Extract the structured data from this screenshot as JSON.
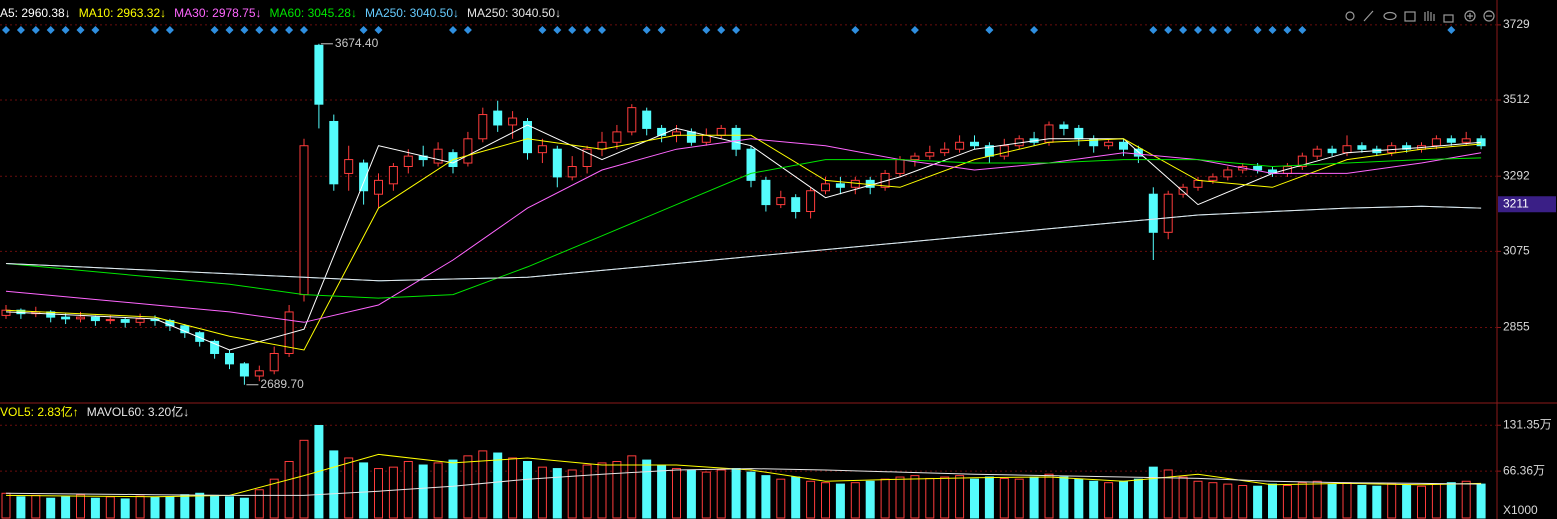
{
  "chart_data": [
    {
      "type": "candlestick",
      "open": [
        2890,
        2905,
        2895,
        2900,
        2885,
        2880,
        2885,
        2875,
        2878,
        2870,
        2880,
        2875,
        2860,
        2840,
        2815,
        2780,
        2750,
        2715,
        2730,
        2780,
        2950,
        3670,
        3450,
        3300,
        3330,
        3240,
        3270,
        3320,
        3350,
        3330,
        3360,
        3330,
        3400,
        3480,
        3440,
        3450,
        3360,
        3370,
        3290,
        3320,
        3370,
        3390,
        3420,
        3480,
        3430,
        3410,
        3420,
        3390,
        3410,
        3430,
        3370,
        3280,
        3210,
        3230,
        3190,
        3250,
        3270,
        3260,
        3280,
        3260,
        3300,
        3340,
        3350,
        3360,
        3370,
        3390,
        3380,
        3350,
        3380,
        3400,
        3390,
        3440,
        3430,
        3400,
        3380,
        3390,
        3370,
        3240,
        3130,
        3240,
        3260,
        3280,
        3290,
        3310,
        3320,
        3310,
        3300,
        3320,
        3350,
        3370,
        3360,
        3380,
        3370,
        3360,
        3380,
        3370,
        3380,
        3400,
        3390,
        3400
      ],
      "high": [
        2920,
        2910,
        2915,
        2905,
        2895,
        2900,
        2890,
        2890,
        2885,
        2895,
        2890,
        2880,
        2865,
        2845,
        2820,
        2790,
        2755,
        2745,
        2800,
        2920,
        3400,
        3674.4,
        3470,
        3380,
        3340,
        3300,
        3330,
        3370,
        3380,
        3390,
        3370,
        3420,
        3490,
        3510,
        3480,
        3460,
        3400,
        3380,
        3350,
        3380,
        3420,
        3440,
        3500,
        3490,
        3440,
        3440,
        3430,
        3430,
        3440,
        3440,
        3380,
        3290,
        3250,
        3240,
        3260,
        3290,
        3290,
        3290,
        3290,
        3310,
        3350,
        3360,
        3380,
        3390,
        3410,
        3410,
        3390,
        3400,
        3410,
        3420,
        3450,
        3450,
        3440,
        3410,
        3400,
        3400,
        3380,
        3260,
        3250,
        3270,
        3290,
        3300,
        3320,
        3330,
        3330,
        3320,
        3330,
        3360,
        3380,
        3380,
        3410,
        3390,
        3380,
        3390,
        3390,
        3390,
        3410,
        3410,
        3420,
        3410
      ],
      "low": [
        2880,
        2880,
        2885,
        2870,
        2865,
        2870,
        2860,
        2865,
        2855,
        2860,
        2860,
        2845,
        2825,
        2800,
        2765,
        2735,
        2689.7,
        2700,
        2720,
        2770,
        2930,
        3430,
        3250,
        3250,
        3210,
        3200,
        3250,
        3300,
        3320,
        3320,
        3300,
        3320,
        3390,
        3420,
        3400,
        3340,
        3330,
        3260,
        3280,
        3300,
        3350,
        3370,
        3410,
        3410,
        3390,
        3390,
        3380,
        3380,
        3400,
        3350,
        3260,
        3190,
        3200,
        3170,
        3170,
        3240,
        3240,
        3240,
        3240,
        3250,
        3290,
        3320,
        3340,
        3350,
        3360,
        3370,
        3330,
        3340,
        3370,
        3380,
        3380,
        3410,
        3380,
        3360,
        3370,
        3350,
        3330,
        3050,
        3110,
        3230,
        3250,
        3270,
        3280,
        3300,
        3300,
        3290,
        3290,
        3310,
        3340,
        3350,
        3350,
        3360,
        3350,
        3350,
        3360,
        3360,
        3370,
        3380,
        3380,
        3370
      ],
      "close": [
        2905,
        2895,
        2900,
        2885,
        2880,
        2885,
        2875,
        2878,
        2870,
        2880,
        2875,
        2860,
        2840,
        2815,
        2780,
        2750,
        2715,
        2730,
        2780,
        2900,
        3380,
        3500,
        3270,
        3340,
        3250,
        3280,
        3320,
        3350,
        3340,
        3370,
        3320,
        3400,
        3470,
        3440,
        3460,
        3360,
        3380,
        3290,
        3320,
        3370,
        3390,
        3420,
        3490,
        3430,
        3410,
        3420,
        3390,
        3410,
        3430,
        3370,
        3280,
        3210,
        3230,
        3190,
        3250,
        3270,
        3260,
        3280,
        3260,
        3300,
        3340,
        3350,
        3360,
        3370,
        3390,
        3380,
        3350,
        3380,
        3400,
        3390,
        3440,
        3430,
        3400,
        3380,
        3390,
        3370,
        3350,
        3130,
        3240,
        3260,
        3280,
        3290,
        3310,
        3320,
        3310,
        3300,
        3320,
        3350,
        3370,
        3360,
        3380,
        3370,
        3360,
        3380,
        3370,
        3380,
        3400,
        3390,
        3400,
        3380
      ],
      "up_color": "#ff3c3c",
      "down_color": "#54fcfc",
      "series": [
        {
          "name": "A5: 2960.38↓",
          "color": "#ffffff",
          "x": [
            0,
            5,
            10,
            15,
            20,
            25,
            30,
            35,
            40,
            45,
            50,
            55,
            60,
            65,
            70,
            75,
            80,
            85,
            90,
            95,
            99
          ],
          "values": [
            2900,
            2890,
            2880,
            2790,
            2850,
            3380,
            3330,
            3440,
            3340,
            3430,
            3380,
            3230,
            3290,
            3370,
            3400,
            3400,
            3210,
            3300,
            3360,
            3375,
            3390
          ]
        },
        {
          "name": "MA10: 2963.32↓",
          "color": "#ffff00",
          "x": [
            0,
            5,
            10,
            15,
            20,
            25,
            30,
            35,
            40,
            45,
            50,
            55,
            60,
            65,
            70,
            75,
            80,
            85,
            90,
            95,
            99
          ],
          "values": [
            2905,
            2895,
            2885,
            2830,
            2790,
            3200,
            3340,
            3400,
            3370,
            3410,
            3410,
            3280,
            3260,
            3340,
            3390,
            3400,
            3280,
            3260,
            3340,
            3370,
            3385
          ]
        },
        {
          "name": "MA30: 2978.75↓",
          "color": "#ff66ff",
          "x": [
            0,
            5,
            10,
            15,
            20,
            25,
            30,
            35,
            40,
            45,
            50,
            55,
            60,
            65,
            70,
            75,
            80,
            85,
            90,
            95,
            99
          ],
          "values": [
            2960,
            2940,
            2920,
            2900,
            2870,
            2920,
            3050,
            3200,
            3310,
            3370,
            3400,
            3380,
            3340,
            3310,
            3330,
            3360,
            3340,
            3300,
            3300,
            3330,
            3360
          ]
        },
        {
          "name": "MA60: 3045.28↓",
          "color": "#00e600",
          "x": [
            0,
            5,
            10,
            15,
            20,
            25,
            30,
            35,
            40,
            45,
            50,
            55,
            60,
            65,
            70,
            75,
            80,
            85,
            90,
            95,
            99
          ],
          "values": [
            3040,
            3020,
            3000,
            2980,
            2950,
            2940,
            2950,
            3030,
            3120,
            3210,
            3300,
            3340,
            3340,
            3330,
            3330,
            3340,
            3340,
            3320,
            3330,
            3340,
            3345
          ]
        },
        {
          "name": "MA250: 3040.50↓",
          "color": "#66ccff",
          "x": [
            0,
            5,
            10,
            15,
            20,
            25,
            30,
            35,
            40,
            45,
            50,
            55,
            60,
            65,
            70,
            75,
            80,
            85,
            90,
            95,
            99
          ],
          "values": [
            3040,
            3030,
            3020,
            3010,
            3000,
            2990,
            2995,
            3000,
            3020,
            3040,
            3060,
            3080,
            3100,
            3120,
            3140,
            3160,
            3180,
            3190,
            3200,
            3205,
            3200
          ]
        },
        {
          "name": "MA250: 3040.50↓",
          "color": "#e6e6e6",
          "x": [
            0,
            5,
            10,
            15,
            20,
            25,
            30,
            35,
            40,
            45,
            50,
            55,
            60,
            65,
            70,
            75,
            80,
            85,
            90,
            95,
            99
          ],
          "values": [
            3040,
            3030,
            3020,
            3010,
            3000,
            2990,
            2995,
            3000,
            3020,
            3040,
            3060,
            3080,
            3100,
            3120,
            3140,
            3160,
            3180,
            3190,
            3200,
            3205,
            3200
          ]
        }
      ],
      "ylim": [
        2637,
        3772
      ],
      "yticks": [
        3729,
        3512,
        3292,
        3075,
        2855
      ],
      "grid": true,
      "current_price": 3211,
      "annotations": [
        {
          "value": 3674.4,
          "label": "3674.40",
          "index": 21
        },
        {
          "value": 2689.7,
          "label": "2689.70",
          "index": 16
        }
      ],
      "signals": [
        0,
        1,
        2,
        3,
        4,
        5,
        6,
        10,
        11,
        14,
        15,
        16,
        17,
        18,
        19,
        20,
        24,
        25,
        30,
        31,
        36,
        37,
        38,
        39,
        40,
        43,
        44,
        47,
        48,
        49,
        57,
        61,
        66,
        69,
        77,
        78,
        79,
        80,
        81,
        82,
        84,
        85,
        86,
        87,
        97
      ]
    },
    {
      "type": "bar",
      "values": [
        35,
        30,
        32,
        28,
        30,
        33,
        28,
        30,
        27,
        31,
        29,
        30,
        33,
        35,
        32,
        30,
        28,
        40,
        55,
        80,
        110,
        131,
        95,
        85,
        78,
        70,
        72,
        80,
        75,
        78,
        82,
        88,
        95,
        92,
        85,
        80,
        72,
        70,
        68,
        75,
        78,
        80,
        88,
        82,
        75,
        70,
        68,
        65,
        68,
        70,
        65,
        60,
        55,
        58,
        52,
        50,
        48,
        50,
        52,
        55,
        58,
        60,
        56,
        58,
        60,
        55,
        58,
        56,
        55,
        58,
        62,
        58,
        55,
        52,
        50,
        52,
        55,
        72,
        68,
        58,
        52,
        50,
        48,
        46,
        45,
        48,
        46,
        50,
        52,
        48,
        50,
        46,
        45,
        48,
        46,
        45,
        48,
        50,
        52,
        48
      ],
      "series": [
        {
          "name": "VOL5: 2.83亿↑",
          "color": "#ffff00",
          "x": [
            0,
            5,
            10,
            15,
            20,
            25,
            30,
            35,
            40,
            45,
            50,
            55,
            60,
            65,
            70,
            75,
            80,
            85,
            90,
            95,
            99
          ],
          "values": [
            32,
            31,
            30,
            32,
            60,
            90,
            78,
            85,
            75,
            75,
            68,
            52,
            55,
            57,
            58,
            52,
            62,
            47,
            49,
            47,
            49
          ]
        },
        {
          "name": "MAVOL60: 3.20亿↓",
          "color": "#e6e6e6",
          "x": [
            0,
            5,
            10,
            15,
            20,
            25,
            30,
            35,
            40,
            45,
            50,
            55,
            60,
            65,
            70,
            75,
            80,
            85,
            90,
            95,
            99
          ],
          "values": [
            35,
            34,
            33,
            32,
            32,
            38,
            45,
            55,
            62,
            68,
            70,
            68,
            65,
            62,
            60,
            58,
            56,
            52,
            50,
            49,
            48
          ]
        }
      ],
      "ylim": [
        0,
        160
      ],
      "yticks": [
        {
          "value": 131.35,
          "label": "131.35万"
        },
        {
          "value": 66.36,
          "label": "66.36万"
        }
      ],
      "grid": true,
      "unit_label": "X1000"
    }
  ]
}
